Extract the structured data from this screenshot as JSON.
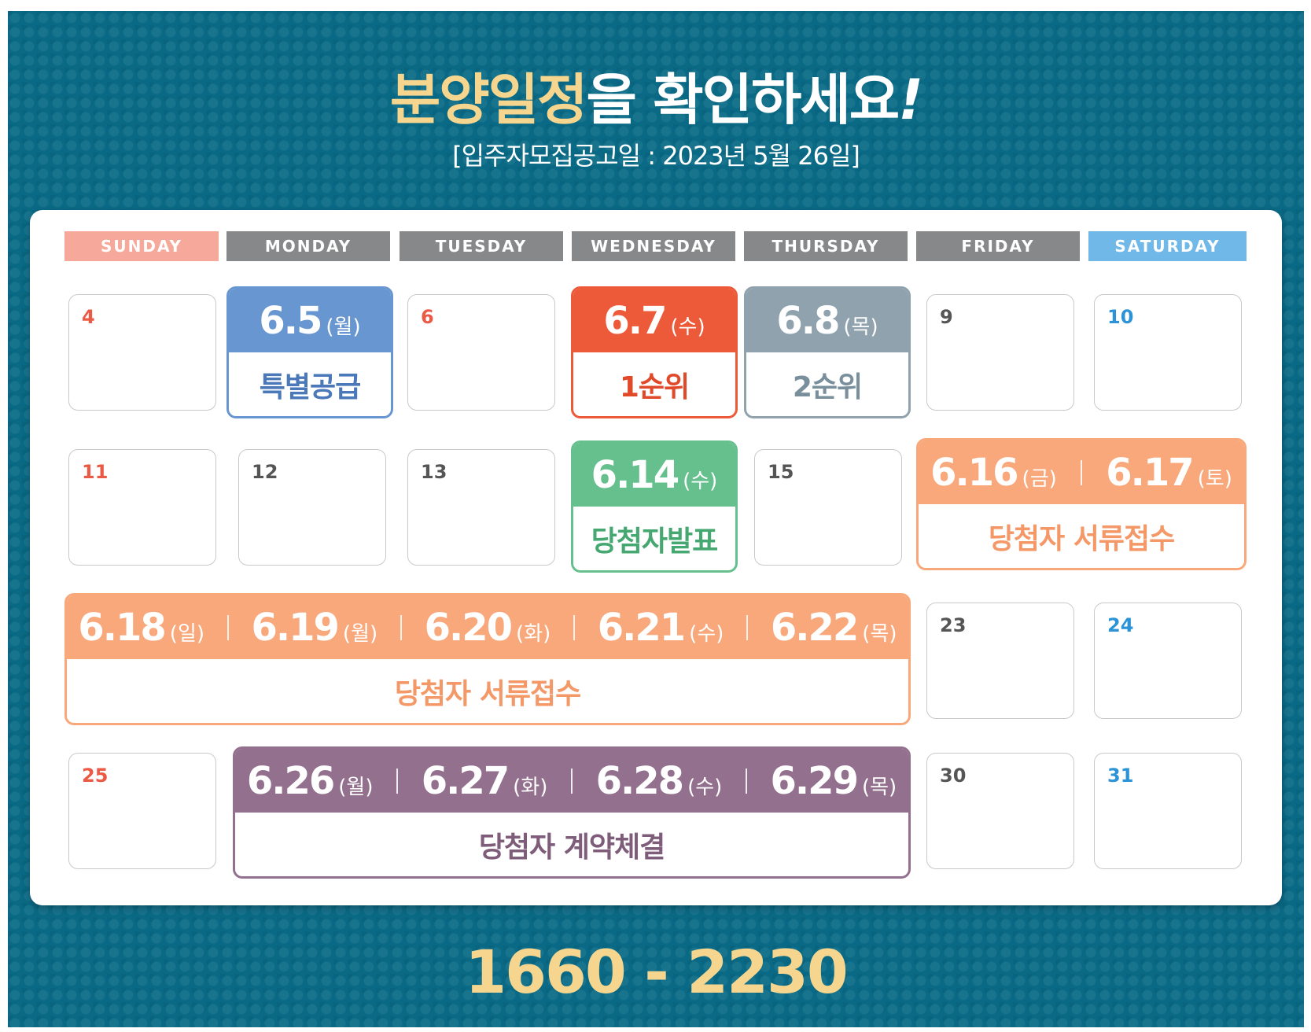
{
  "title": {
    "highlight": "분양일정",
    "rest": "을 확인하세요",
    "exclaim": "!"
  },
  "subtitle": "[입주자모집공고일 : 2023년 5월 26일]",
  "weekdays": [
    "SUNDAY",
    "MONDAY",
    "TUESDAY",
    "WEDNESDAY",
    "THURSDAY",
    "FRIDAY",
    "SATURDAY"
  ],
  "days": {
    "d4": "4",
    "d6": "6",
    "d9": "9",
    "d10": "10",
    "d11": "11",
    "d12": "12",
    "d13": "13",
    "d15": "15",
    "d23": "23",
    "d24": "24",
    "d25": "25",
    "d30": "30",
    "d31": "31"
  },
  "events": {
    "special": {
      "date": "6.5",
      "day": "(월)",
      "label": "특별공급",
      "color": "#6896d0",
      "text_color": "#4a78b8"
    },
    "first": {
      "date": "6.7",
      "day": "(수)",
      "label": "1순위",
      "color": "#ec5a39",
      "text_color": "#e04a2a"
    },
    "second": {
      "date": "6.8",
      "day": "(목)",
      "label": "2순위",
      "color": "#8fa2ae",
      "text_color": "#7a8f9c"
    },
    "announce": {
      "date": "6.14",
      "day": "(수)",
      "label": "당첨자발표",
      "color": "#66c08e",
      "text_color": "#45a870"
    },
    "docs1": {
      "dates": [
        {
          "date": "6.16",
          "day": "(금)"
        },
        {
          "date": "6.17",
          "day": "(토)"
        }
      ],
      "label": "당첨자 서류접수",
      "color": "#f8a87a",
      "text_color": "#f49868"
    },
    "docs2": {
      "dates": [
        {
          "date": "6.18",
          "day": "(일)"
        },
        {
          "date": "6.19",
          "day": "(월)"
        },
        {
          "date": "6.20",
          "day": "(화)"
        },
        {
          "date": "6.21",
          "day": "(수)"
        },
        {
          "date": "6.22",
          "day": "(목)"
        }
      ],
      "label": "당첨자 서류접수",
      "color": "#f8a87a",
      "text_color": "#f49868"
    },
    "contract": {
      "dates": [
        {
          "date": "6.26",
          "day": "(월)"
        },
        {
          "date": "6.27",
          "day": "(화)"
        },
        {
          "date": "6.28",
          "day": "(수)"
        },
        {
          "date": "6.29",
          "day": "(목)"
        }
      ],
      "label": "당첨자 계약체결",
      "color": "#93708e",
      "text_color": "#7e5c7a"
    }
  },
  "phone": "1660 - 2230",
  "colors": {
    "background": "#0a6a86",
    "title_highlight": "#f6d68e"
  }
}
